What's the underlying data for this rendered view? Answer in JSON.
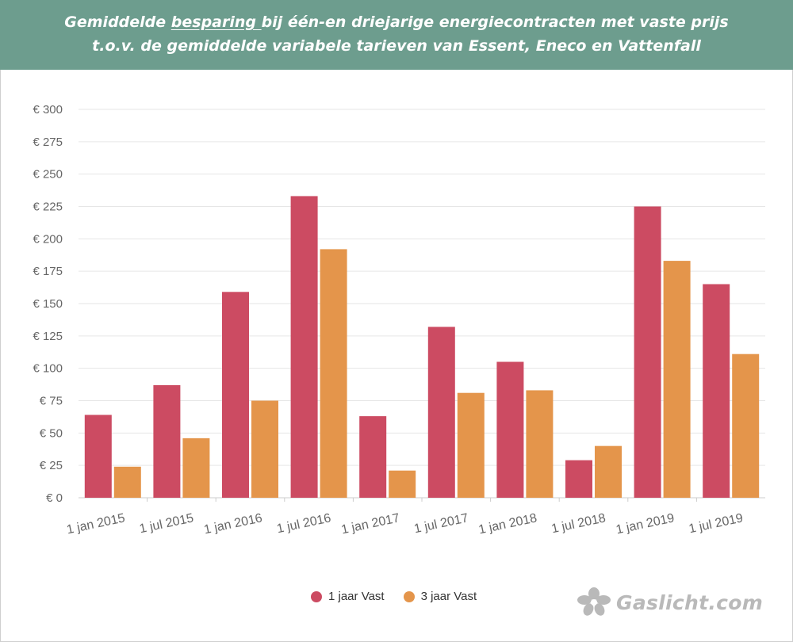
{
  "header": {
    "line1_pre": "Gemiddelde ",
    "line1_underlined": "besparing ",
    "line1_post": "bij één-en driejarige energiecontracten met vaste prijs",
    "line2": "t.o.v. de gemiddelde variabele tarieven van Essent, Eneco en Vattenfall"
  },
  "colors": {
    "header_bg": "#6d9d8e",
    "series_1": "#cc4b62",
    "series_2": "#e4954b",
    "grid": "#e6e6e6",
    "axis_text": "#666666"
  },
  "chart_data": {
    "type": "bar",
    "title": "Gemiddelde besparing bij één-en driejarige energiecontracten met vaste prijs t.o.v. de gemiddelde variabele tarieven van Essent, Eneco en Vattenfall",
    "categories": [
      "1 jan 2015",
      "1 jul 2015",
      "1 jan 2016",
      "1 jul 2016",
      "1 jan 2017",
      "1 jul 2017",
      "1 jan 2018",
      "1 jul 2018",
      "1 jan 2019",
      "1 jul 2019"
    ],
    "series": [
      {
        "name": "1 jaar Vast",
        "values": [
          64,
          87,
          159,
          233,
          63,
          132,
          105,
          29,
          225,
          165
        ]
      },
      {
        "name": "3 jaar Vast",
        "values": [
          24,
          46,
          75,
          192,
          21,
          81,
          83,
          40,
          183,
          111
        ]
      }
    ],
    "ylim": [
      0,
      300
    ],
    "yticks": [
      0,
      25,
      50,
      75,
      100,
      125,
      150,
      175,
      200,
      225,
      250,
      275,
      300
    ],
    "ytick_labels": [
      "€ 0",
      "€ 25",
      "€ 50",
      "€ 75",
      "€ 100",
      "€ 125",
      "€ 150",
      "€ 175",
      "€ 200",
      "€ 225",
      "€ 250",
      "€ 275",
      "€ 300"
    ],
    "xlabel": "",
    "ylabel": "",
    "grid": true,
    "legend_position": "bottom-center"
  },
  "legend": [
    {
      "label": "1 jaar Vast"
    },
    {
      "label": "3 jaar Vast"
    }
  ],
  "logo": {
    "text": "Gaslicht.com",
    "icon": "flower-logo-icon"
  }
}
